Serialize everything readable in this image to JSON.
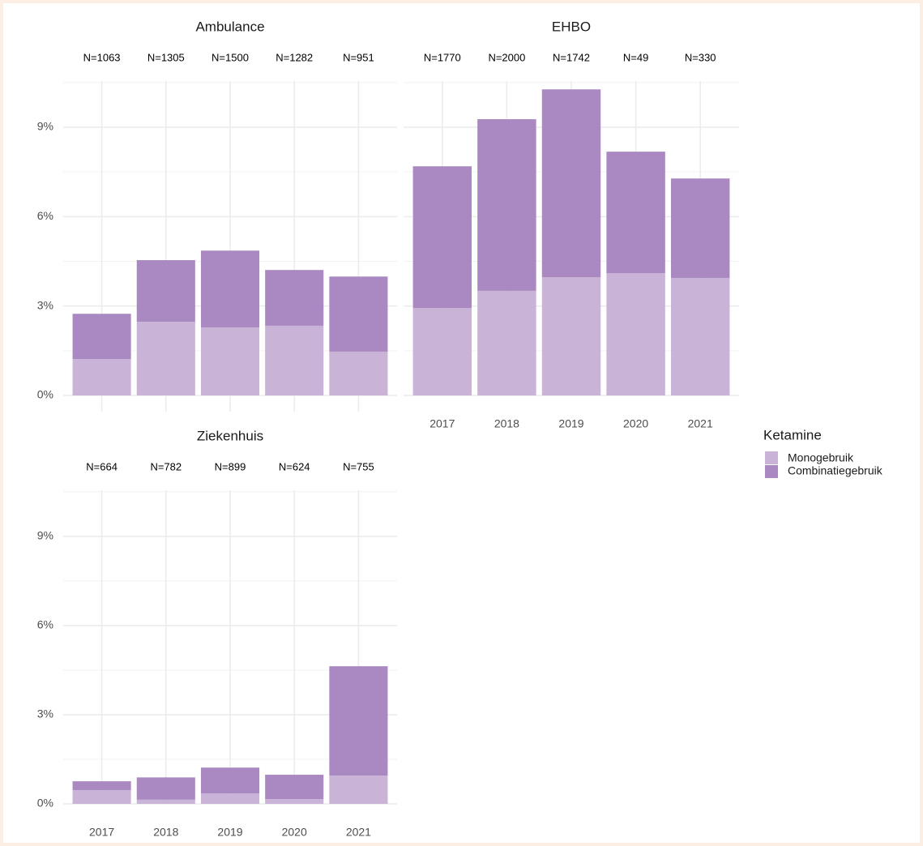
{
  "chart_data": [
    {
      "type": "stacked_bar",
      "title": "Ambulance",
      "categories": [
        "2017",
        "2018",
        "2019",
        "2020",
        "2021"
      ],
      "annotations": [
        "N=1063",
        "N=1305",
        "N=1500",
        "N=1282",
        "N=951"
      ],
      "series": [
        {
          "name": "Monogebruik",
          "color": "#c9b3d6",
          "values": [
            1.22,
            2.47,
            2.28,
            2.34,
            1.47
          ]
        },
        {
          "name": "Combinatiegebruik",
          "color": "#aa88c2",
          "values": [
            1.52,
            2.07,
            2.58,
            1.87,
            2.52
          ]
        }
      ],
      "ylim": [
        0,
        10.55
      ],
      "yticks": [
        {
          "value": 0,
          "label": "0%"
        },
        {
          "value": 3,
          "label": "3%"
        },
        {
          "value": 6,
          "label": "6%"
        },
        {
          "value": 9,
          "label": "9%"
        }
      ],
      "minor_yticks": [
        1.5,
        4.5,
        7.5,
        10.5
      ],
      "grid": true
    },
    {
      "type": "stacked_bar",
      "title": "EHBO",
      "categories": [
        "2017",
        "2018",
        "2019",
        "2020",
        "2021"
      ],
      "annotations": [
        "N=1770",
        "N=2000",
        "N=1742",
        "N=49",
        "N=330"
      ],
      "series": [
        {
          "name": "Monogebruik",
          "color": "#c9b3d6",
          "values": [
            2.93,
            3.51,
            3.97,
            4.1,
            3.94
          ]
        },
        {
          "name": "Combinatiegebruik",
          "color": "#aa88c2",
          "values": [
            4.76,
            5.76,
            6.3,
            4.08,
            3.34
          ]
        }
      ],
      "ylim": [
        0,
        10.55
      ],
      "yticks": [
        {
          "value": 0,
          "label": "0%"
        },
        {
          "value": 3,
          "label": "3%"
        },
        {
          "value": 6,
          "label": "6%"
        },
        {
          "value": 9,
          "label": "9%"
        }
      ],
      "minor_yticks": [
        1.5,
        4.5,
        7.5,
        10.5
      ],
      "grid": true
    },
    {
      "type": "stacked_bar",
      "title": "Ziekenhuis",
      "categories": [
        "2017",
        "2018",
        "2019",
        "2020",
        "2021"
      ],
      "annotations": [
        "N=664",
        "N=782",
        "N=899",
        "N=624",
        "N=755"
      ],
      "series": [
        {
          "name": "Monogebruik",
          "color": "#c9b3d6",
          "values": [
            0.46,
            0.14,
            0.35,
            0.16,
            0.95
          ]
        },
        {
          "name": "Combinatiegebruik",
          "color": "#aa88c2",
          "values": [
            0.3,
            0.75,
            0.87,
            0.82,
            3.68
          ]
        }
      ],
      "ylim": [
        0,
        10.55
      ],
      "yticks": [
        {
          "value": 0,
          "label": "0%"
        },
        {
          "value": 3,
          "label": "3%"
        },
        {
          "value": 6,
          "label": "6%"
        },
        {
          "value": 9,
          "label": "9%"
        }
      ],
      "minor_yticks": [
        1.5,
        4.5,
        7.5,
        10.5
      ],
      "grid": true
    }
  ],
  "legend": {
    "title": "Ketamine",
    "position": "right"
  }
}
